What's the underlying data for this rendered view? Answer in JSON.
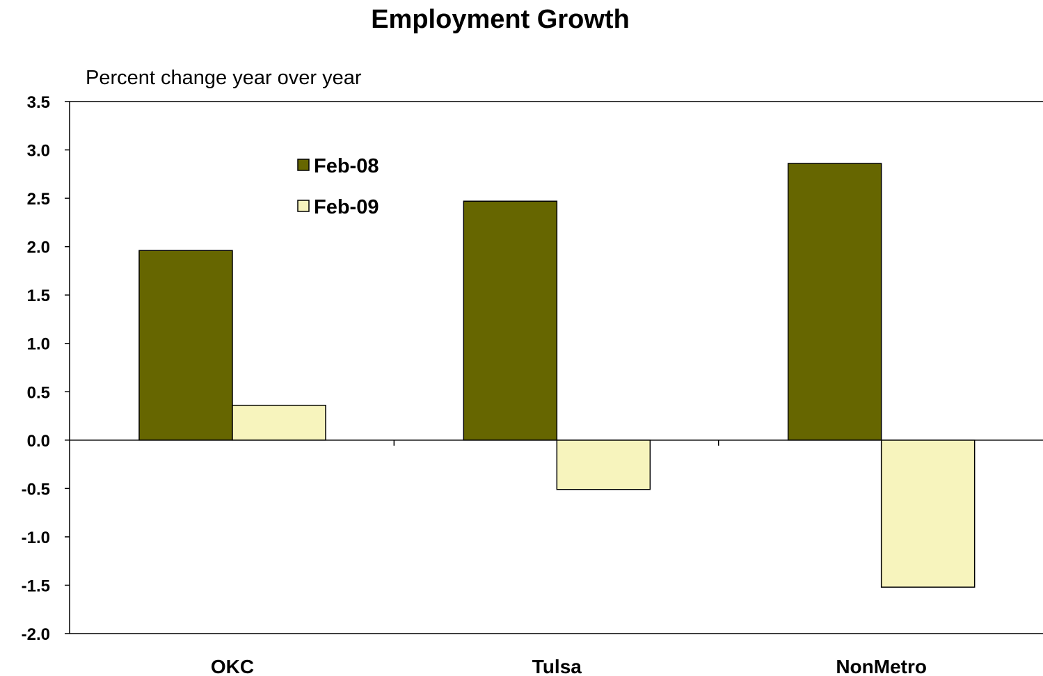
{
  "chart_data": {
    "type": "bar",
    "title": "Employment Growth",
    "subtitle": "Percent change year over year",
    "categories": [
      "OKC",
      "Tulsa",
      "NonMetro"
    ],
    "series": [
      {
        "name": "Feb-08",
        "values": [
          1.96,
          2.47,
          2.86
        ],
        "color": "#666600"
      },
      {
        "name": "Feb-09",
        "values": [
          0.36,
          -0.51,
          -1.52
        ],
        "color": "#f7f4bd"
      }
    ],
    "ylim": [
      -2.0,
      3.5
    ],
    "yticks": [
      "3.5",
      "3.0",
      "2.5",
      "2.0",
      "1.5",
      "1.0",
      "0.5",
      "0.0",
      "-0.5",
      "-1.0",
      "-1.5",
      "-2.0"
    ],
    "grid": false,
    "legend_position": "top-left inside plot"
  }
}
